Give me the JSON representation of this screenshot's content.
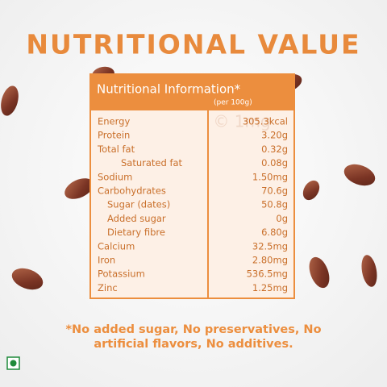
{
  "title": "NUTRITIONAL VALUE",
  "table": {
    "header": "Nutritional Information*",
    "per": "(per 100g)",
    "rows": [
      [
        "Energy",
        "305.3kcal"
      ],
      [
        "Protein",
        "3.20g"
      ],
      [
        "Total fat",
        "0.32g"
      ],
      [
        "Saturated fat",
        "0.08g"
      ],
      [
        "Sodium",
        "1.50mg"
      ],
      [
        "Carbohydrates",
        "70.6g"
      ],
      [
        "Sugar (dates)",
        "50.8g"
      ],
      [
        "Added sugar",
        "0g"
      ],
      [
        "Dietary fibre",
        "6.80g"
      ],
      [
        "Calcium",
        "32.5mg"
      ],
      [
        "Iron",
        "2.80mg"
      ],
      [
        "Potassium",
        "536.5mg"
      ],
      [
        "Zinc",
        "1.25mg"
      ]
    ]
  },
  "watermark": "© 1mg",
  "footnote": [
    "*No added sugar, No preservatives, No",
    "artificial  flavors, No additives."
  ]
}
